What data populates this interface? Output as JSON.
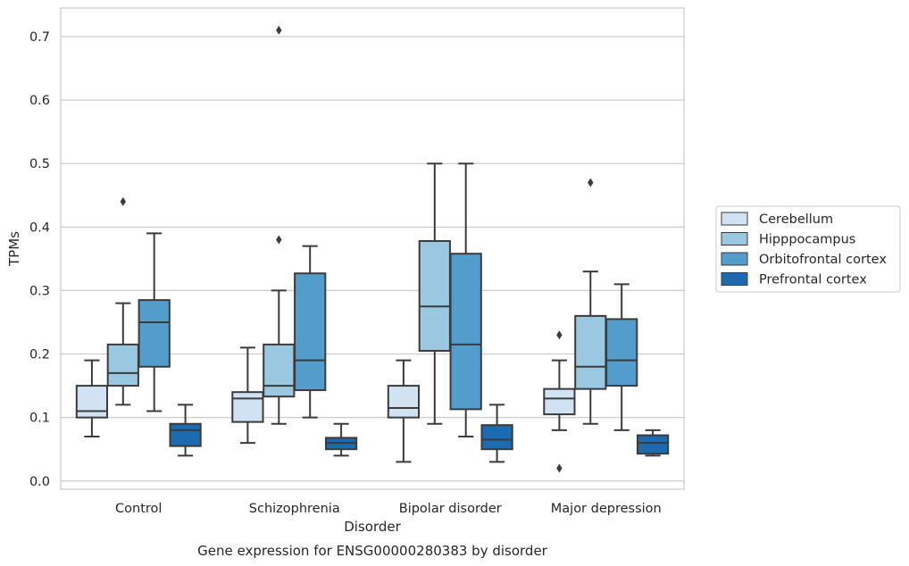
{
  "chart_data": {
    "type": "box",
    "title": "Gene expression for ENSG00000280383 by disorder",
    "xlabel": "Disorder",
    "ylabel": "TPMs",
    "ylim": [
      -0.013,
      0.745
    ],
    "yticks": [
      "0.0",
      "0.1",
      "0.2",
      "0.3",
      "0.4",
      "0.5",
      "0.6",
      "0.7"
    ],
    "grid": true,
    "legend_position": "right",
    "categories": [
      "Control",
      "Schizophrenia",
      "Bipolar disorder",
      "Major depression"
    ],
    "series": [
      {
        "name": "Cerebellum",
        "color": "#d1e3f3",
        "boxes": [
          {
            "whislo": 0.07,
            "q1": 0.1,
            "med": 0.11,
            "q3": 0.15,
            "whishi": 0.19,
            "fliers": []
          },
          {
            "whislo": 0.06,
            "q1": 0.093,
            "med": 0.13,
            "q3": 0.14,
            "whishi": 0.21,
            "fliers": []
          },
          {
            "whislo": 0.03,
            "q1": 0.1,
            "med": 0.115,
            "q3": 0.15,
            "whishi": 0.19,
            "fliers": []
          },
          {
            "whislo": 0.08,
            "q1": 0.105,
            "med": 0.13,
            "q3": 0.145,
            "whishi": 0.19,
            "fliers": [
              0.23,
              0.02
            ]
          }
        ]
      },
      {
        "name": "Hipppocampus",
        "color": "#9ac8e0",
        "boxes": [
          {
            "whislo": 0.12,
            "q1": 0.15,
            "med": 0.17,
            "q3": 0.215,
            "whishi": 0.28,
            "fliers": [
              0.44
            ]
          },
          {
            "whislo": 0.09,
            "q1": 0.133,
            "med": 0.15,
            "q3": 0.215,
            "whishi": 0.3,
            "fliers": [
              0.38,
              0.71
            ]
          },
          {
            "whislo": 0.09,
            "q1": 0.205,
            "med": 0.275,
            "q3": 0.378,
            "whishi": 0.5,
            "fliers": []
          },
          {
            "whislo": 0.09,
            "q1": 0.145,
            "med": 0.18,
            "q3": 0.26,
            "whishi": 0.33,
            "fliers": [
              0.47
            ]
          }
        ]
      },
      {
        "name": "Orbitofrontal cortex",
        "color": "#529dcc",
        "boxes": [
          {
            "whislo": 0.11,
            "q1": 0.18,
            "med": 0.25,
            "q3": 0.285,
            "whishi": 0.39,
            "fliers": []
          },
          {
            "whislo": 0.1,
            "q1": 0.143,
            "med": 0.19,
            "q3": 0.327,
            "whishi": 0.37,
            "fliers": []
          },
          {
            "whislo": 0.07,
            "q1": 0.113,
            "med": 0.215,
            "q3": 0.358,
            "whishi": 0.5,
            "fliers": []
          },
          {
            "whislo": 0.08,
            "q1": 0.15,
            "med": 0.19,
            "q3": 0.255,
            "whishi": 0.31,
            "fliers": []
          }
        ]
      },
      {
        "name": "Prefrontal cortex",
        "color": "#1c6aaf",
        "boxes": [
          {
            "whislo": 0.04,
            "q1": 0.055,
            "med": 0.08,
            "q3": 0.09,
            "whishi": 0.12,
            "fliers": []
          },
          {
            "whislo": 0.04,
            "q1": 0.05,
            "med": 0.06,
            "q3": 0.068,
            "whishi": 0.09,
            "fliers": []
          },
          {
            "whislo": 0.03,
            "q1": 0.05,
            "med": 0.065,
            "q3": 0.088,
            "whishi": 0.12,
            "fliers": []
          },
          {
            "whislo": 0.04,
            "q1": 0.043,
            "med": 0.06,
            "q3": 0.072,
            "whishi": 0.08,
            "fliers": []
          }
        ]
      }
    ]
  }
}
